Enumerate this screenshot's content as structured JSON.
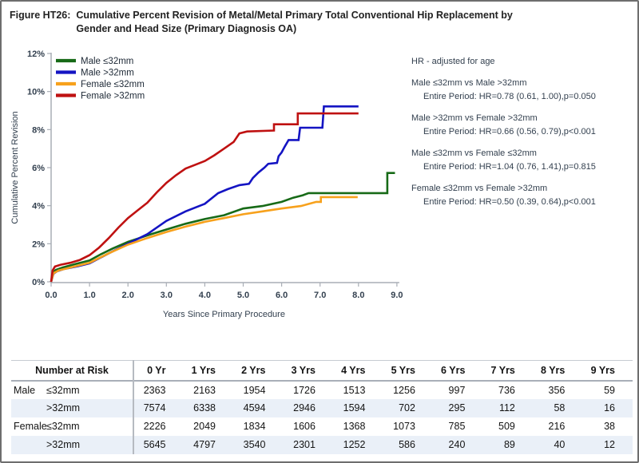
{
  "header": {
    "figure_label": "Figure HT26:",
    "title_line1": "Cumulative Percent Revision of Metal/Metal Primary Total Conventional Hip Replacement by",
    "title_line2": "Gender and Head Size (Primary Diagnosis OA)"
  },
  "chart_data": {
    "type": "line",
    "subtype": "cumulative-step-curves",
    "xlabel": "Years Since Primary Procedure",
    "ylabel": "Cumulative Percent Revision",
    "xlim": [
      0,
      9
    ],
    "ylim": [
      0,
      12
    ],
    "x_ticks": [
      0,
      1,
      2,
      3,
      4,
      5,
      6,
      7,
      8,
      9
    ],
    "x_tick_labels": [
      "0.0",
      "1.0",
      "2.0",
      "3.0",
      "4.0",
      "5.0",
      "6.0",
      "7.0",
      "8.0",
      "9.0"
    ],
    "y_ticks": [
      0,
      2,
      4,
      6,
      8,
      10,
      12
    ],
    "y_tick_labels": [
      "0%",
      "2%",
      "4%",
      "6%",
      "8%",
      "10%",
      "12%"
    ],
    "grid": false,
    "legend_position": "top-left",
    "series": [
      {
        "name": "Male ≤32mm",
        "color": "#176a17",
        "points": [
          [
            0,
            0
          ],
          [
            0.05,
            0.5
          ],
          [
            0.12,
            0.62
          ],
          [
            0.3,
            0.75
          ],
          [
            0.6,
            0.92
          ],
          [
            1.0,
            1.12
          ],
          [
            1.3,
            1.45
          ],
          [
            1.6,
            1.75
          ],
          [
            2.0,
            2.1
          ],
          [
            2.3,
            2.3
          ],
          [
            2.6,
            2.5
          ],
          [
            3.0,
            2.75
          ],
          [
            3.5,
            3.05
          ],
          [
            4.0,
            3.3
          ],
          [
            4.5,
            3.5
          ],
          [
            5.0,
            3.85
          ],
          [
            5.5,
            3.98
          ],
          [
            6.0,
            4.2
          ],
          [
            6.3,
            4.42
          ],
          [
            6.55,
            4.55
          ],
          [
            6.7,
            4.66
          ],
          [
            8.75,
            4.66
          ],
          [
            8.75,
            5.72
          ],
          [
            8.95,
            5.72
          ]
        ]
      },
      {
        "name": "Male >32mm",
        "color": "#1414c3",
        "points": [
          [
            0,
            0
          ],
          [
            0.06,
            0.42
          ],
          [
            0.15,
            0.55
          ],
          [
            0.35,
            0.68
          ],
          [
            0.7,
            0.82
          ],
          [
            1.0,
            0.97
          ],
          [
            1.5,
            1.5
          ],
          [
            2.0,
            2.0
          ],
          [
            2.5,
            2.5
          ],
          [
            3.0,
            3.2
          ],
          [
            3.5,
            3.7
          ],
          [
            4.0,
            4.1
          ],
          [
            4.35,
            4.66
          ],
          [
            4.6,
            4.87
          ],
          [
            4.9,
            5.08
          ],
          [
            5.15,
            5.15
          ],
          [
            5.25,
            5.45
          ],
          [
            5.4,
            5.75
          ],
          [
            5.55,
            6.0
          ],
          [
            5.65,
            6.2
          ],
          [
            5.88,
            6.25
          ],
          [
            5.92,
            6.6
          ],
          [
            6.0,
            6.8
          ],
          [
            6.08,
            7.1
          ],
          [
            6.18,
            7.45
          ],
          [
            6.44,
            7.45
          ],
          [
            6.48,
            8.1
          ],
          [
            7.06,
            8.1
          ],
          [
            7.1,
            9.22
          ],
          [
            8.0,
            9.22
          ]
        ]
      },
      {
        "name": "Female ≤32mm",
        "color": "#f7a11c",
        "points": [
          [
            0,
            0
          ],
          [
            0.06,
            0.45
          ],
          [
            0.2,
            0.6
          ],
          [
            0.5,
            0.75
          ],
          [
            1.0,
            1.0
          ],
          [
            1.5,
            1.5
          ],
          [
            2.0,
            1.95
          ],
          [
            2.5,
            2.3
          ],
          [
            3.0,
            2.62
          ],
          [
            3.5,
            2.9
          ],
          [
            4.0,
            3.15
          ],
          [
            4.5,
            3.35
          ],
          [
            5.0,
            3.55
          ],
          [
            5.5,
            3.7
          ],
          [
            6.0,
            3.85
          ],
          [
            6.5,
            3.98
          ],
          [
            6.9,
            4.2
          ],
          [
            7.02,
            4.2
          ],
          [
            7.02,
            4.45
          ],
          [
            7.98,
            4.45
          ]
        ]
      },
      {
        "name": "Female >32mm",
        "color": "#bf1111",
        "points": [
          [
            0,
            0
          ],
          [
            0.04,
            0.6
          ],
          [
            0.1,
            0.8
          ],
          [
            0.25,
            0.9
          ],
          [
            0.5,
            1.0
          ],
          [
            0.75,
            1.15
          ],
          [
            1.0,
            1.4
          ],
          [
            1.25,
            1.8
          ],
          [
            1.5,
            2.3
          ],
          [
            1.75,
            2.85
          ],
          [
            2.0,
            3.35
          ],
          [
            2.25,
            3.75
          ],
          [
            2.5,
            4.15
          ],
          [
            2.75,
            4.7
          ],
          [
            3.0,
            5.2
          ],
          [
            3.25,
            5.6
          ],
          [
            3.5,
            5.95
          ],
          [
            3.75,
            6.15
          ],
          [
            4.0,
            6.35
          ],
          [
            4.25,
            6.65
          ],
          [
            4.5,
            7.0
          ],
          [
            4.75,
            7.35
          ],
          [
            4.9,
            7.8
          ],
          [
            5.1,
            7.9
          ],
          [
            5.8,
            7.95
          ],
          [
            5.8,
            8.28
          ],
          [
            6.42,
            8.28
          ],
          [
            6.42,
            8.85
          ],
          [
            8.0,
            8.85
          ]
        ]
      }
    ]
  },
  "stats": {
    "title": "HR - adjusted for age",
    "comparisons": [
      {
        "label": "Male ≤32mm vs Male >32mm",
        "detail": "Entire Period: HR=0.78 (0.61, 1.00),p=0.050"
      },
      {
        "label": "Male >32mm vs Female >32mm",
        "detail": "Entire Period: HR=0.66 (0.56, 0.79),p<0.001"
      },
      {
        "label": "Male ≤32mm vs Female ≤32mm",
        "detail": "Entire Period: HR=1.04 (0.76, 1.41),p=0.815"
      },
      {
        "label": "Female ≤32mm vs Female >32mm",
        "detail": "Entire Period: HR=0.50 (0.39, 0.64),p<0.001"
      }
    ]
  },
  "risk_table": {
    "corner_label": "Number at Risk",
    "col_headers": [
      "0 Yr",
      "1 Yrs",
      "2 Yrs",
      "3 Yrs",
      "4 Yrs",
      "5 Yrs",
      "6 Yrs",
      "7 Yrs",
      "8 Yrs",
      "9 Yrs"
    ],
    "stripe_color": "#eaf0f8",
    "rows": [
      {
        "gender": "Male",
        "size": "≤32mm",
        "values": [
          2363,
          2163,
          1954,
          1726,
          1513,
          1256,
          997,
          736,
          356,
          59
        ]
      },
      {
        "gender": "",
        "size": ">32mm",
        "values": [
          7574,
          6338,
          4594,
          2946,
          1594,
          702,
          295,
          112,
          58,
          16
        ]
      },
      {
        "gender": "Female",
        "size": "≤32mm",
        "values": [
          2226,
          2049,
          1834,
          1606,
          1368,
          1073,
          785,
          509,
          216,
          38
        ]
      },
      {
        "gender": "",
        "size": ">32mm",
        "values": [
          5645,
          4797,
          3540,
          2301,
          1252,
          586,
          240,
          89,
          40,
          12
        ]
      }
    ]
  }
}
